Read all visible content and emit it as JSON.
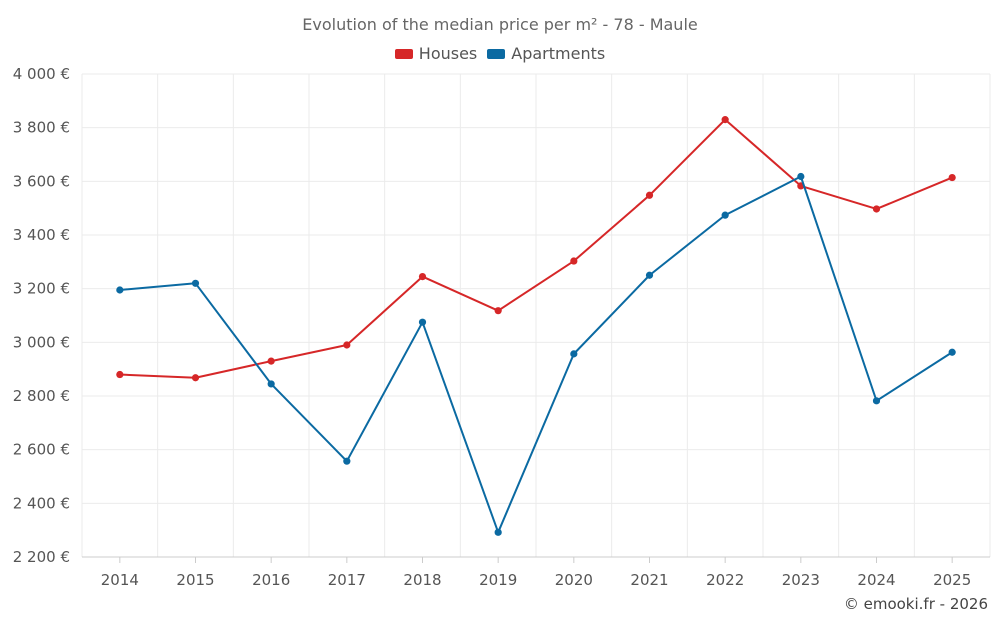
{
  "chart_data": {
    "type": "line",
    "title": "Evolution of the median price per m² - 78 - Maule",
    "categories": [
      "2014",
      "2015",
      "2016",
      "2017",
      "2018",
      "2019",
      "2020",
      "2021",
      "2022",
      "2023",
      "2024",
      "2025"
    ],
    "series": [
      {
        "name": "Houses",
        "color": "#d62728",
        "values": [
          2880,
          2868,
          2930,
          2990,
          3245,
          3118,
          3303,
          3548,
          3830,
          3583,
          3497,
          3614
        ]
      },
      {
        "name": "Apartments",
        "color": "#0b6aa2",
        "values": [
          3195,
          3220,
          2845,
          2557,
          3075,
          2292,
          2957,
          3250,
          3474,
          3618,
          2782,
          2963
        ]
      }
    ],
    "ylim": [
      2200,
      4000
    ],
    "yticks": [
      2200,
      2400,
      2600,
      2800,
      3000,
      3200,
      3400,
      3600,
      3800,
      4000
    ],
    "ytick_labels": [
      "2 200 €",
      "2 400 €",
      "2 600 €",
      "2 800 €",
      "3 000 €",
      "3 200 €",
      "3 400 €",
      "3 600 €",
      "3 800 €",
      "4 000 €"
    ],
    "xlabel": "",
    "ylabel": "",
    "grid": true,
    "legend_position": "top-center"
  },
  "credit": "© emooki.fr - 2026"
}
